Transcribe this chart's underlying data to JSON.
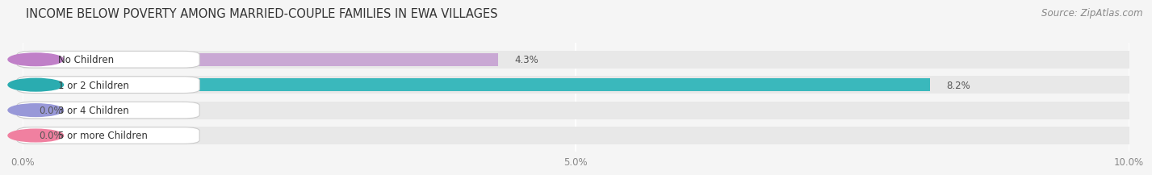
{
  "title": "INCOME BELOW POVERTY AMONG MARRIED-COUPLE FAMILIES IN EWA VILLAGES",
  "source": "Source: ZipAtlas.com",
  "categories": [
    "No Children",
    "1 or 2 Children",
    "3 or 4 Children",
    "5 or more Children"
  ],
  "values": [
    4.3,
    8.2,
    0.0,
    0.0
  ],
  "bar_colors": [
    "#c9a8d4",
    "#3ab8bc",
    "#b0b8e8",
    "#f4a8bc"
  ],
  "label_circle_colors": [
    "#c080c8",
    "#2aacb0",
    "#9898d8",
    "#f080a0"
  ],
  "xlim": [
    0,
    10.0
  ],
  "xticks": [
    0.0,
    5.0,
    10.0
  ],
  "xtick_labels": [
    "0.0%",
    "5.0%",
    "10.0%"
  ],
  "bar_height": 0.52,
  "row_bg_color": "#e8e8e8",
  "title_fontsize": 10.5,
  "source_fontsize": 8.5,
  "label_fontsize": 8.5,
  "value_fontsize": 8.5,
  "background_color": "#f5f5f5",
  "figsize": [
    14.06,
    2.33
  ]
}
